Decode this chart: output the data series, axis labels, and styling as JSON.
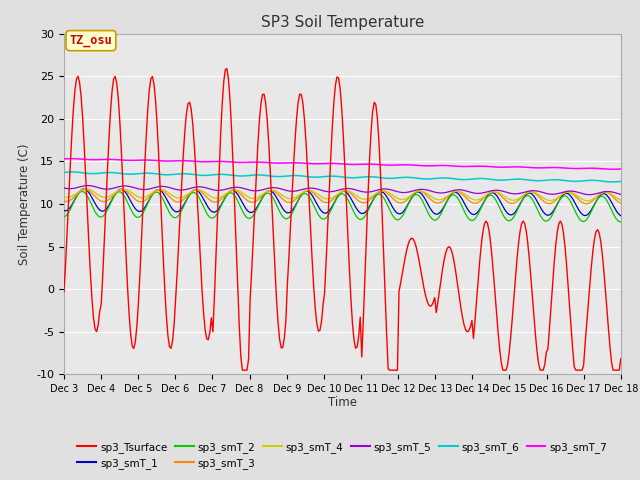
{
  "title": "SP3 Soil Temperature",
  "ylabel": "Soil Temperature (C)",
  "xlabel": "Time",
  "ylim": [
    -10,
    30
  ],
  "yticks": [
    -10,
    -5,
    0,
    5,
    10,
    15,
    20,
    25,
    30
  ],
  "xtick_labels": [
    "Dec 3",
    "Dec 4",
    "Dec 5",
    "Dec 6",
    "Dec 7",
    "Dec 8",
    "Dec 9",
    "Dec 10",
    "Dec 11",
    "Dec 12",
    "Dec 13",
    "Dec 14",
    "Dec 15",
    "Dec 16",
    "Dec 17",
    "Dec 18"
  ],
  "fig_bg_color": "#e0e0e0",
  "plot_bg_color": "#e8e8e8",
  "annotation_text": "TZ_osu",
  "annotation_color": "#cc0000",
  "annotation_bg": "#ffffcc",
  "annotation_border": "#cc9900",
  "series_colors": {
    "sp3_Tsurface": "#ff0000",
    "sp3_smT_1": "#0000cc",
    "sp3_smT_2": "#00cc00",
    "sp3_smT_3": "#ff8800",
    "sp3_smT_4": "#cccc00",
    "sp3_smT_5": "#9900cc",
    "sp3_smT_6": "#00cccc",
    "sp3_smT_7": "#ff00ff"
  },
  "legend_order": [
    "sp3_Tsurface",
    "sp3_smT_1",
    "sp3_smT_2",
    "sp3_smT_3",
    "sp3_smT_4",
    "sp3_smT_5",
    "sp3_smT_6",
    "sp3_smT_7"
  ],
  "legend_ncol": 6
}
